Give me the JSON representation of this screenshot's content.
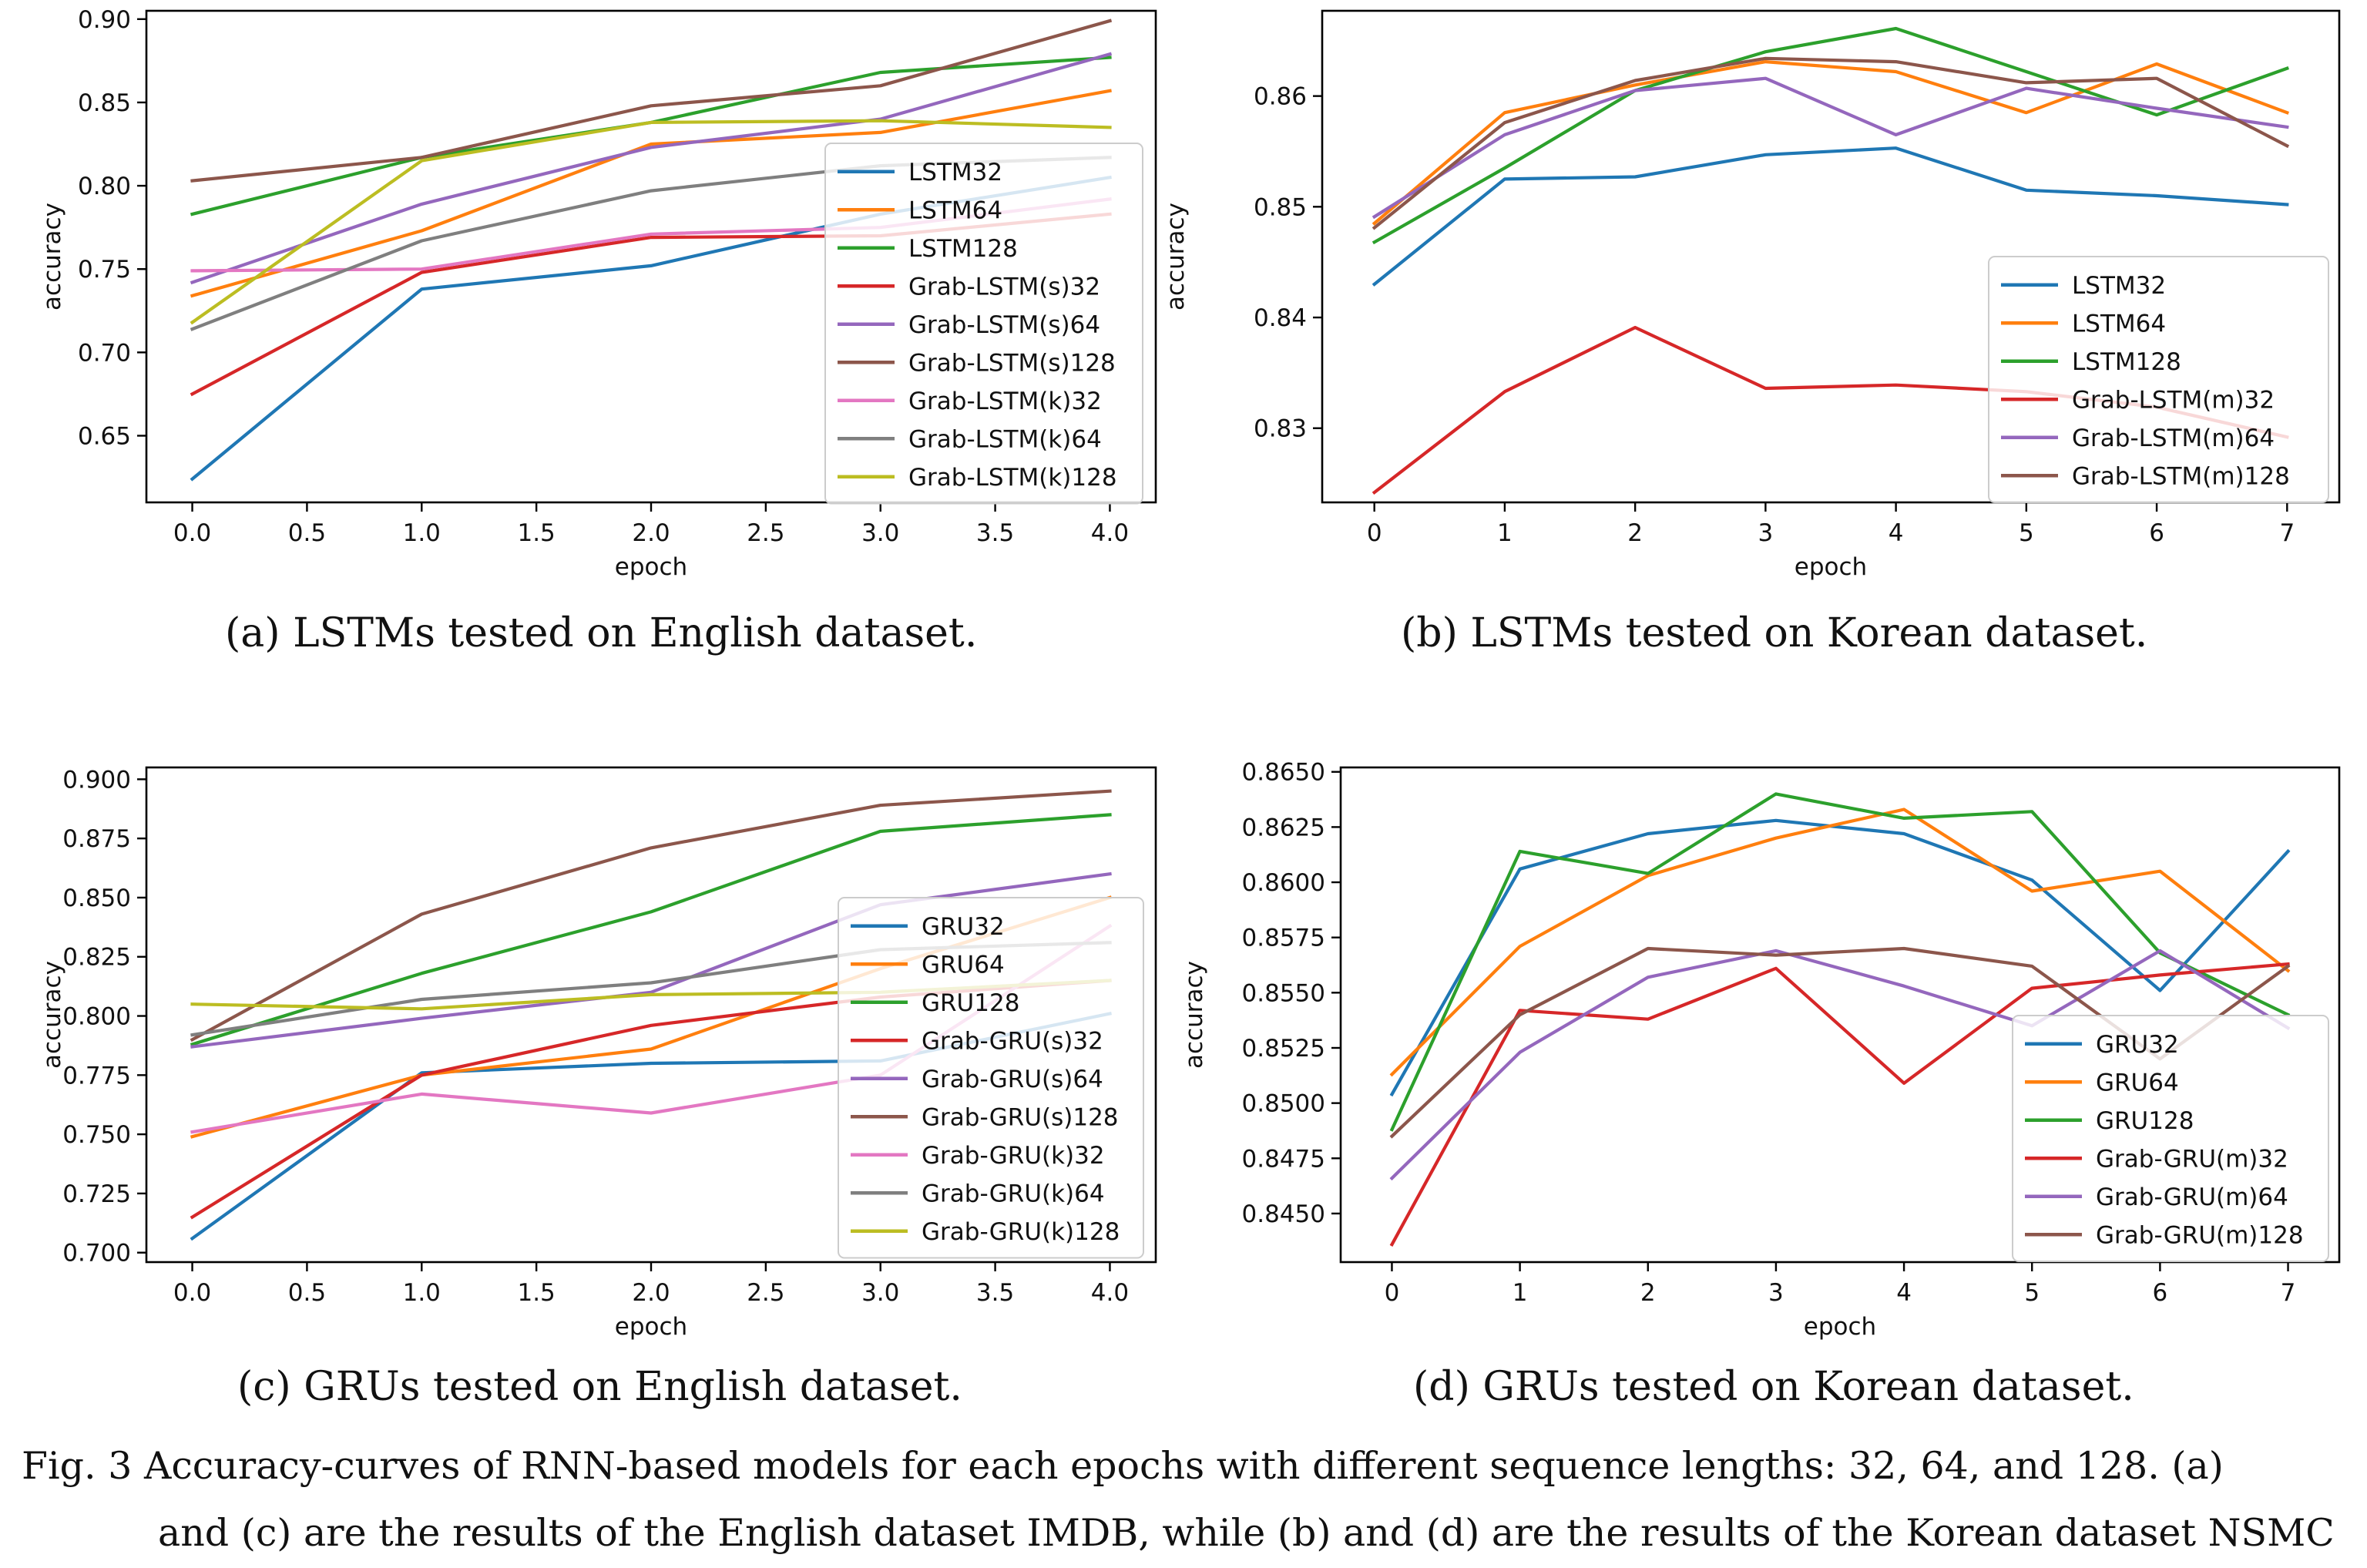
{
  "figure": {
    "caption_line1": "Fig. 3 Accuracy-curves of RNN-based models for each epochs with different sequence lengths: 32, 64, and 128. (a)",
    "caption_line2": "and (c) are the results of the English dataset IMDB, while (b) and (d) are the results of the Korean dataset NSMC"
  },
  "chart_data": [
    {
      "type": "line",
      "caption": "(a) LSTMs tested on English dataset.",
      "xlabel": "epoch",
      "ylabel": "accuracy",
      "xlim": [
        -0.2,
        4.2
      ],
      "ylim": [
        0.61,
        0.905
      ],
      "xticks": [
        0.0,
        0.5,
        1.0,
        1.5,
        2.0,
        2.5,
        3.0,
        3.5,
        4.0
      ],
      "xtick_labels": [
        "0.0",
        "0.5",
        "1.0",
        "1.5",
        "2.0",
        "2.5",
        "3.0",
        "3.5",
        "4.0"
      ],
      "yticks": [
        0.65,
        0.7,
        0.75,
        0.8,
        0.85,
        0.9
      ],
      "ytick_labels": [
        "0.65",
        "0.70",
        "0.75",
        "0.80",
        "0.85",
        "0.90"
      ],
      "grid": false,
      "legend_position": "lower-right",
      "x": [
        0,
        1,
        2,
        3,
        4
      ],
      "series": [
        {
          "name": "LSTM32",
          "color": "#1f77b4",
          "values": [
            0.624,
            0.738,
            0.752,
            0.783,
            0.805
          ]
        },
        {
          "name": "LSTM64",
          "color": "#ff7f0e",
          "values": [
            0.734,
            0.773,
            0.825,
            0.832,
            0.857
          ]
        },
        {
          "name": "LSTM128",
          "color": "#2ca02c",
          "values": [
            0.783,
            0.817,
            0.838,
            0.868,
            0.877
          ]
        },
        {
          "name": "Grab-LSTM(s)32",
          "color": "#d62728",
          "values": [
            0.675,
            0.748,
            0.769,
            0.77,
            0.783
          ]
        },
        {
          "name": "Grab-LSTM(s)64",
          "color": "#9467bd",
          "values": [
            0.742,
            0.789,
            0.823,
            0.84,
            0.879
          ]
        },
        {
          "name": "Grab-LSTM(s)128",
          "color": "#8c564b",
          "values": [
            0.803,
            0.817,
            0.848,
            0.86,
            0.899
          ]
        },
        {
          "name": "Grab-LSTM(k)32",
          "color": "#e377c2",
          "values": [
            0.749,
            0.75,
            0.771,
            0.775,
            0.792
          ]
        },
        {
          "name": "Grab-LSTM(k)64",
          "color": "#7f7f7f",
          "values": [
            0.714,
            0.767,
            0.797,
            0.812,
            0.817
          ]
        },
        {
          "name": "Grab-LSTM(k)128",
          "color": "#bcbd22",
          "values": [
            0.718,
            0.815,
            0.838,
            0.839,
            0.835
          ]
        }
      ]
    },
    {
      "type": "line",
      "caption": "(b) LSTMs tested on Korean dataset.",
      "xlabel": "epoch",
      "ylabel": "accuracy",
      "xlim": [
        -0.4,
        7.4
      ],
      "ylim": [
        0.8233,
        0.8677
      ],
      "xticks": [
        0,
        1,
        2,
        3,
        4,
        5,
        6,
        7
      ],
      "xtick_labels": [
        "0",
        "1",
        "2",
        "3",
        "4",
        "5",
        "6",
        "7"
      ],
      "yticks": [
        0.83,
        0.84,
        0.85,
        0.86
      ],
      "ytick_labels": [
        "0.83",
        "0.84",
        "0.85",
        "0.86"
      ],
      "grid": false,
      "legend_position": "lower-right",
      "x": [
        0,
        1,
        2,
        3,
        4,
        5,
        6,
        7
      ],
      "series": [
        {
          "name": "LSTM32",
          "color": "#1f77b4",
          "values": [
            0.843,
            0.8525,
            0.8527,
            0.8547,
            0.8553,
            0.8515,
            0.851,
            0.8502
          ]
        },
        {
          "name": "LSTM64",
          "color": "#ff7f0e",
          "values": [
            0.8485,
            0.8585,
            0.861,
            0.8631,
            0.8622,
            0.8585,
            0.8629,
            0.8585
          ]
        },
        {
          "name": "LSTM128",
          "color": "#2ca02c",
          "values": [
            0.8468,
            0.8535,
            0.8605,
            0.864,
            0.8661,
            0.8622,
            0.8583,
            0.8625
          ]
        },
        {
          "name": "Grab-LSTM(m)32",
          "color": "#d62728",
          "values": [
            0.8242,
            0.8333,
            0.8391,
            0.8336,
            0.8339,
            0.8333,
            0.8319,
            0.8292
          ]
        },
        {
          "name": "Grab-LSTM(m)64",
          "color": "#9467bd",
          "values": [
            0.8491,
            0.8565,
            0.8605,
            0.8616,
            0.8565,
            0.8607,
            0.8589,
            0.8572
          ]
        },
        {
          "name": "Grab-LSTM(m)128",
          "color": "#8c564b",
          "values": [
            0.8481,
            0.8576,
            0.8614,
            0.8634,
            0.8631,
            0.8612,
            0.8616,
            0.8555
          ]
        }
      ]
    },
    {
      "type": "line",
      "caption": "(c) GRUs tested on English dataset.",
      "xlabel": "epoch",
      "ylabel": "accuracy",
      "xlim": [
        -0.2,
        4.2
      ],
      "ylim": [
        0.696,
        0.905
      ],
      "xticks": [
        0.0,
        0.5,
        1.0,
        1.5,
        2.0,
        2.5,
        3.0,
        3.5,
        4.0
      ],
      "xtick_labels": [
        "0.0",
        "0.5",
        "1.0",
        "1.5",
        "2.0",
        "2.5",
        "3.0",
        "3.5",
        "4.0"
      ],
      "yticks": [
        0.7,
        0.725,
        0.75,
        0.775,
        0.8,
        0.825,
        0.85,
        0.875,
        0.9
      ],
      "ytick_labels": [
        "0.700",
        "0.725",
        "0.750",
        "0.775",
        "0.800",
        "0.825",
        "0.850",
        "0.875",
        "0.900"
      ],
      "grid": false,
      "legend_position": "lower-right",
      "x": [
        0,
        1,
        2,
        3,
        4
      ],
      "series": [
        {
          "name": "GRU32",
          "color": "#1f77b4",
          "values": [
            0.706,
            0.776,
            0.78,
            0.781,
            0.801
          ]
        },
        {
          "name": "GRU64",
          "color": "#ff7f0e",
          "values": [
            0.749,
            0.775,
            0.786,
            0.82,
            0.85
          ]
        },
        {
          "name": "GRU128",
          "color": "#2ca02c",
          "values": [
            0.788,
            0.818,
            0.844,
            0.878,
            0.885
          ]
        },
        {
          "name": "Grab-GRU(s)32",
          "color": "#d62728",
          "values": [
            0.715,
            0.775,
            0.796,
            0.808,
            0.815
          ]
        },
        {
          "name": "Grab-GRU(s)64",
          "color": "#9467bd",
          "values": [
            0.787,
            0.799,
            0.81,
            0.847,
            0.86
          ]
        },
        {
          "name": "Grab-GRU(s)128",
          "color": "#8c564b",
          "values": [
            0.79,
            0.843,
            0.871,
            0.889,
            0.895
          ]
        },
        {
          "name": "Grab-GRU(k)32",
          "color": "#e377c2",
          "values": [
            0.751,
            0.767,
            0.759,
            0.775,
            0.838
          ]
        },
        {
          "name": "Grab-GRU(k)64",
          "color": "#7f7f7f",
          "values": [
            0.792,
            0.807,
            0.814,
            0.828,
            0.831
          ]
        },
        {
          "name": "Grab-GRU(k)128",
          "color": "#bcbd22",
          "values": [
            0.805,
            0.803,
            0.809,
            0.81,
            0.815
          ]
        }
      ]
    },
    {
      "type": "line",
      "caption": "(d) GRUs tested on Korean dataset.",
      "xlabel": "epoch",
      "ylabel": "accuracy",
      "xlim": [
        -0.4,
        7.4
      ],
      "ylim": [
        0.8428,
        0.8652
      ],
      "xticks": [
        0,
        1,
        2,
        3,
        4,
        5,
        6,
        7
      ],
      "xtick_labels": [
        "0",
        "1",
        "2",
        "3",
        "4",
        "5",
        "6",
        "7"
      ],
      "yticks": [
        0.845,
        0.8475,
        0.85,
        0.8525,
        0.855,
        0.8575,
        0.86,
        0.8625,
        0.865
      ],
      "ytick_labels": [
        "0.8450",
        "0.8475",
        "0.8500",
        "0.8525",
        "0.8550",
        "0.8575",
        "0.8600",
        "0.8625",
        "0.8650"
      ],
      "grid": false,
      "legend_position": "lower-right",
      "x": [
        0,
        1,
        2,
        3,
        4,
        5,
        6,
        7
      ],
      "series": [
        {
          "name": "GRU32",
          "color": "#1f77b4",
          "values": [
            0.8504,
            0.8606,
            0.8622,
            0.8628,
            0.8622,
            0.8601,
            0.8551,
            0.8614
          ]
        },
        {
          "name": "GRU64",
          "color": "#ff7f0e",
          "values": [
            0.8513,
            0.8571,
            0.8603,
            0.862,
            0.8633,
            0.8596,
            0.8605,
            0.856
          ]
        },
        {
          "name": "GRU128",
          "color": "#2ca02c",
          "values": [
            0.8488,
            0.8614,
            0.8604,
            0.864,
            0.8629,
            0.8632,
            0.8568,
            0.854
          ]
        },
        {
          "name": "Grab-GRU(m)32",
          "color": "#d62728",
          "values": [
            0.8436,
            0.8542,
            0.8538,
            0.8561,
            0.8509,
            0.8552,
            0.8558,
            0.8563
          ]
        },
        {
          "name": "Grab-GRU(m)64",
          "color": "#9467bd",
          "values": [
            0.8466,
            0.8523,
            0.8557,
            0.8569,
            0.8553,
            0.8535,
            0.8569,
            0.8534
          ]
        },
        {
          "name": "Grab-GRU(m)128",
          "color": "#8c564b",
          "values": [
            0.8485,
            0.854,
            0.857,
            0.8567,
            0.857,
            0.8562,
            0.852,
            0.8562
          ]
        }
      ]
    }
  ]
}
